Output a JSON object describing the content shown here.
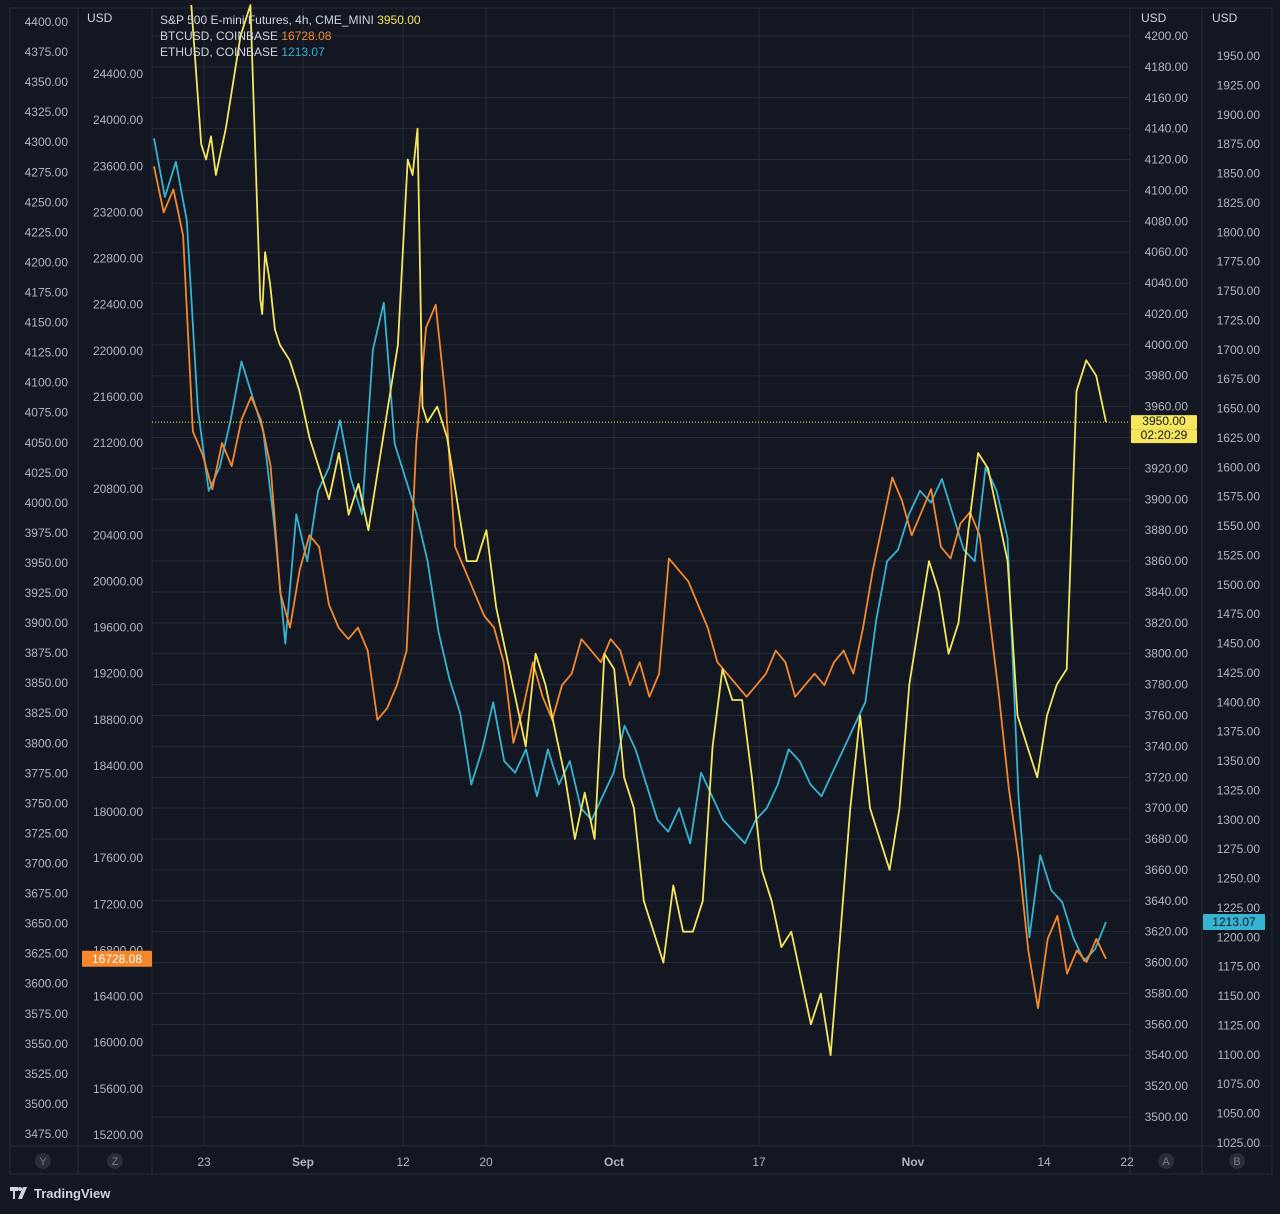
{
  "app": {
    "brand": "TradingView"
  },
  "legend": [
    {
      "name": "S&P 500 E-mini Futures, 4h, CME_MINI",
      "value": "3950.00",
      "color": "#f5e65c"
    },
    {
      "name": "BTCUSD, COINBASE",
      "value": "16728.08",
      "color": "#f5882c"
    },
    {
      "name": "ETHUSD, COINBASE",
      "value": "1213.07",
      "color": "#35b3d0"
    }
  ],
  "axes": {
    "left_currency": "USD",
    "mid_currency": "USD",
    "right1_currency": "USD",
    "right2_currency": "USD",
    "left_scale_btn": "Y",
    "mid_scale_btn": "Z",
    "right1_scale_btn": "A",
    "right2_scale_btn": "B"
  },
  "price_tags": {
    "btc": "16728.08",
    "spx": "3950.00",
    "spx_countdown": "02:20:29",
    "eth": "1213.07"
  },
  "chart_data": {
    "type": "line",
    "x_axis": {
      "ticks": [
        "23",
        "Sep",
        "12",
        "20",
        "Oct",
        "17",
        "Nov",
        "14",
        "22"
      ]
    },
    "y_axes": {
      "left_extra": {
        "range": [
          3475,
          4400
        ],
        "step": 25,
        "ticks": [
          "4400.00",
          "4375.00",
          "4350.00",
          "4325.00",
          "4300.00",
          "4275.00",
          "4250.00",
          "4225.00",
          "4200.00",
          "4175.00",
          "4150.00",
          "4125.00",
          "4100.00",
          "4075.00",
          "4050.00",
          "4025.00",
          "4000.00",
          "3975.00",
          "3950.00",
          "3925.00",
          "3900.00",
          "3875.00",
          "3850.00",
          "3825.00",
          "3800.00",
          "3775.00",
          "3750.00",
          "3725.00",
          "3700.00",
          "3675.00",
          "3650.00",
          "3625.00",
          "3600.00",
          "3575.00",
          "3550.00",
          "3525.00",
          "3500.00",
          "3475.00"
        ]
      },
      "btc": {
        "range": [
          15200,
          24400
        ],
        "step": 400,
        "ticks": [
          "24400.00",
          "24000.00",
          "23600.00",
          "23200.00",
          "22800.00",
          "22400.00",
          "22000.00",
          "21600.00",
          "21200.00",
          "20800.00",
          "20400.00",
          "20000.00",
          "19600.00",
          "19200.00",
          "18800.00",
          "18400.00",
          "18000.00",
          "17600.00",
          "17200.00",
          "16800.00",
          "16400.00",
          "16000.00",
          "15600.00",
          "15200.00"
        ]
      },
      "spx": {
        "range": [
          3500,
          4200
        ],
        "step": 20,
        "ticks": [
          "4200.00",
          "4180.00",
          "4160.00",
          "4140.00",
          "4120.00",
          "4100.00",
          "4080.00",
          "4060.00",
          "4040.00",
          "4020.00",
          "4000.00",
          "3980.00",
          "3960.00",
          "3940.00",
          "3920.00",
          "3900.00",
          "3880.00",
          "3860.00",
          "3840.00",
          "3820.00",
          "3800.00",
          "3780.00",
          "3760.00",
          "3740.00",
          "3720.00",
          "3700.00",
          "3680.00",
          "3660.00",
          "3640.00",
          "3620.00",
          "3600.00",
          "3580.00",
          "3560.00",
          "3540.00",
          "3520.00",
          "3500.00"
        ]
      },
      "eth": {
        "range": [
          1025,
          1950
        ],
        "step": 25,
        "ticks": [
          "1950.00",
          "1925.00",
          "1900.00",
          "1875.00",
          "1850.00",
          "1825.00",
          "1800.00",
          "1775.00",
          "1750.00",
          "1725.00",
          "1700.00",
          "1675.00",
          "1650.00",
          "1625.00",
          "1600.00",
          "1575.00",
          "1550.00",
          "1525.00",
          "1500.00",
          "1475.00",
          "1450.00",
          "1425.00",
          "1400.00",
          "1375.00",
          "1350.00",
          "1325.00",
          "1300.00",
          "1275.00",
          "1250.00",
          "1225.00",
          "1200.00",
          "1175.00",
          "1150.00",
          "1125.00",
          "1100.00",
          "1075.00",
          "1050.00",
          "1025.00"
        ]
      }
    },
    "series": [
      {
        "name": "S&P 500 E-mini Futures, 4h, CME_MINI",
        "axis": "spx",
        "color": "#f5e65c",
        "x": [
          0.04,
          0.05,
          0.055,
          0.06,
          0.065,
          0.07,
          0.075,
          0.08,
          0.09,
          0.1,
          0.11,
          0.112,
          0.115,
          0.12,
          0.125,
          0.13,
          0.14,
          0.15,
          0.16,
          0.17,
          0.18,
          0.19,
          0.2,
          0.21,
          0.22,
          0.23,
          0.24,
          0.25,
          0.26,
          0.265,
          0.27,
          0.275,
          0.28,
          0.29,
          0.3,
          0.31,
          0.32,
          0.33,
          0.34,
          0.35,
          0.36,
          0.37,
          0.38,
          0.39,
          0.4,
          0.41,
          0.42,
          0.43,
          0.44,
          0.45,
          0.46,
          0.47,
          0.48,
          0.49,
          0.5,
          0.51,
          0.52,
          0.53,
          0.54,
          0.55,
          0.56,
          0.57,
          0.58,
          0.59,
          0.6,
          0.61,
          0.62,
          0.63,
          0.64,
          0.65,
          0.66,
          0.67,
          0.68,
          0.69,
          0.7,
          0.71,
          0.72,
          0.73,
          0.74,
          0.75,
          0.76,
          0.77,
          0.78,
          0.79,
          0.8,
          0.81,
          0.82,
          0.83,
          0.84,
          0.85,
          0.86,
          0.87,
          0.875,
          0.88,
          0.89,
          0.9,
          0.91,
          0.92,
          0.93,
          0.94,
          0.95,
          0.96,
          0.97
        ],
        "values": [
          4220,
          4130,
          4120,
          4135,
          4110,
          4125,
          4140,
          4160,
          4200,
          4220,
          4030,
          4020,
          4060,
          4040,
          4010,
          4000,
          3990,
          3970,
          3940,
          3920,
          3900,
          3930,
          3890,
          3910,
          3880,
          3920,
          3960,
          4000,
          4120,
          4110,
          4140,
          3960,
          3950,
          3960,
          3940,
          3900,
          3860,
          3860,
          3880,
          3830,
          3800,
          3770,
          3740,
          3800,
          3780,
          3750,
          3720,
          3680,
          3710,
          3680,
          3800,
          3790,
          3720,
          3700,
          3640,
          3620,
          3600,
          3650,
          3620,
          3620,
          3640,
          3740,
          3790,
          3770,
          3770,
          3720,
          3660,
          3640,
          3610,
          3620,
          3590,
          3560,
          3580,
          3540,
          3620,
          3700,
          3760,
          3700,
          3680,
          3660,
          3700,
          3780,
          3820,
          3860,
          3840,
          3800,
          3820,
          3880,
          3930,
          3920,
          3890,
          3860,
          3810,
          3760,
          3740,
          3720,
          3760,
          3780,
          3790,
          3970,
          3990,
          3980,
          3950
        ],
        "render_hint": "spx"
      },
      {
        "name": "BTCUSD, COINBASE",
        "axis": "btc",
        "color": "#f5882c",
        "values": [
          23600,
          23200,
          23400,
          23000,
          21300,
          21100,
          20800,
          21200,
          21000,
          21400,
          21600,
          21400,
          21000,
          19900,
          19600,
          20100,
          20400,
          20300,
          19800,
          19600,
          19500,
          19600,
          19400,
          18800,
          18900,
          19100,
          19400,
          21200,
          22200,
          22400,
          21600,
          20300,
          20100,
          19900,
          19700,
          19600,
          19300,
          18600,
          18900,
          19300,
          19000,
          18800,
          19100,
          19200,
          19500,
          19400,
          19300,
          19500,
          19400,
          19100,
          19300,
          19000,
          19200,
          20200,
          20100,
          20000,
          19800,
          19600,
          19300,
          19200,
          19100,
          19000,
          19100,
          19200,
          19400,
          19300,
          19000,
          19100,
          19200,
          19100,
          19300,
          19400,
          19200,
          19600,
          20100,
          20500,
          20900,
          20700,
          20400,
          20600,
          20800,
          20300,
          20200,
          20500,
          20600,
          20400,
          19700,
          19000,
          18200,
          17600,
          16800,
          16300,
          16900,
          17100,
          16600,
          16800,
          16700,
          16900,
          16728.08
        ]
      },
      {
        "name": "ETHUSD, COINBASE",
        "axis": "eth",
        "color": "#35b3d0",
        "values": [
          1880,
          1830,
          1860,
          1810,
          1650,
          1580,
          1600,
          1640,
          1690,
          1660,
          1630,
          1550,
          1450,
          1560,
          1520,
          1580,
          1600,
          1640,
          1590,
          1560,
          1700,
          1740,
          1620,
          1590,
          1560,
          1520,
          1460,
          1420,
          1390,
          1330,
          1360,
          1400,
          1350,
          1340,
          1360,
          1320,
          1360,
          1330,
          1350,
          1310,
          1300,
          1320,
          1340,
          1380,
          1360,
          1330,
          1300,
          1290,
          1310,
          1280,
          1340,
          1320,
          1300,
          1290,
          1280,
          1300,
          1310,
          1330,
          1360,
          1350,
          1330,
          1320,
          1340,
          1360,
          1380,
          1400,
          1470,
          1520,
          1530,
          1560,
          1580,
          1570,
          1590,
          1560,
          1530,
          1520,
          1600,
          1580,
          1540,
          1320,
          1200,
          1270,
          1240,
          1230,
          1200,
          1180,
          1190,
          1213.07
        ],
        "render_hint": "eth"
      }
    ]
  }
}
